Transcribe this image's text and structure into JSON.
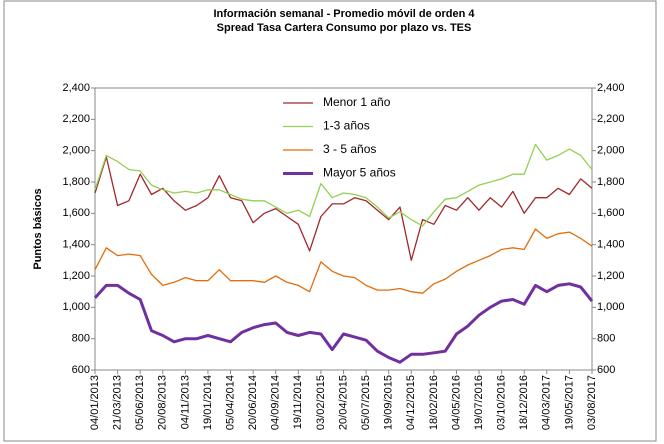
{
  "chart_data": {
    "type": "line",
    "title": "Información semanal - Promedio móvil de orden 4",
    "subtitle": "Spread Tasa Cartera Consumo  por plazo vs. TES",
    "y_label": "Puntos básicos",
    "categories": [
      "04/01/2013",
      null,
      "21/03/2013",
      null,
      "05/06/2013",
      null,
      "20/08/2013",
      null,
      "04/11/2013",
      null,
      "19/01/2014",
      null,
      "05/04/2014",
      null,
      "20/06/2014",
      null,
      "04/09/2014",
      null,
      "19/11/2014",
      null,
      "03/02/2015",
      null,
      "20/04/2015",
      null,
      "05/07/2015",
      null,
      "19/09/2015",
      null,
      "04/12/2015",
      null,
      "18/02/2016",
      null,
      "04/05/2016",
      null,
      "19/07/2016",
      null,
      "03/10/2016",
      null,
      "18/12/2016",
      null,
      "04/03/2017",
      null,
      "19/05/2017",
      null,
      "03/08/2017"
    ],
    "series": [
      {
        "name": "Menor 1 año",
        "color": "#a0282d",
        "values": [
          1730,
          1960,
          1650,
          1680,
          1850,
          1720,
          1760,
          1680,
          1620,
          1650,
          1700,
          1840,
          1700,
          1680,
          1540,
          1600,
          1630,
          1580,
          1530,
          1360,
          1580,
          1660,
          1660,
          1700,
          1680,
          1620,
          1560,
          1640,
          1300,
          1560,
          1530,
          1650,
          1620,
          1700,
          1620,
          1700,
          1640,
          1740,
          1600,
          1700,
          1700,
          1760,
          1720,
          1820,
          1760
        ]
      },
      {
        "name": "1-3 años",
        "color": "#92d050",
        "values": [
          1750,
          1970,
          1930,
          1880,
          1870,
          1780,
          1750,
          1730,
          1740,
          1730,
          1750,
          1750,
          1720,
          1690,
          1680,
          1680,
          1640,
          1600,
          1620,
          1580,
          1790,
          1700,
          1730,
          1720,
          1700,
          1640,
          1570,
          1610,
          1560,
          1520,
          1610,
          1690,
          1700,
          1740,
          1780,
          1800,
          1820,
          1850,
          1850,
          2040,
          1940,
          1970,
          2010,
          1970,
          1880
        ]
      },
      {
        "name": "3 - 5 años",
        "color": "#e46c0a",
        "values": [
          1240,
          1380,
          1330,
          1340,
          1330,
          1210,
          1140,
          1160,
          1190,
          1170,
          1170,
          1240,
          1170,
          1170,
          1170,
          1160,
          1200,
          1160,
          1140,
          1100,
          1290,
          1230,
          1200,
          1190,
          1140,
          1110,
          1110,
          1120,
          1100,
          1090,
          1150,
          1180,
          1230,
          1270,
          1300,
          1330,
          1370,
          1380,
          1370,
          1500,
          1440,
          1470,
          1480,
          1440,
          1390
        ]
      },
      {
        "name": "Mayor 5 años",
        "color": "#7030a0",
        "values": [
          1060,
          1140,
          1140,
          1090,
          1050,
          850,
          820,
          780,
          800,
          800,
          820,
          800,
          780,
          840,
          870,
          890,
          900,
          840,
          820,
          840,
          830,
          730,
          830,
          810,
          790,
          720,
          680,
          650,
          700,
          700,
          710,
          720,
          830,
          880,
          950,
          1000,
          1040,
          1050,
          1020,
          1140,
          1100,
          1140,
          1150,
          1130,
          1040
        ]
      }
    ],
    "ylim": [
      600,
      2400
    ],
    "yticks": [
      {
        "value": 600,
        "label": "600"
      },
      {
        "value": 800,
        "label": "800"
      },
      {
        "value": 1000,
        "label": "1,000"
      },
      {
        "value": 1200,
        "label": "1,200"
      },
      {
        "value": 1400,
        "label": "1,400"
      },
      {
        "value": 1600,
        "label": "1,600"
      },
      {
        "value": 1800,
        "label": "1,800"
      },
      {
        "value": 2000,
        "label": "2,000"
      },
      {
        "value": 2200,
        "label": "2,200"
      },
      {
        "value": 2400,
        "label": "2,400"
      }
    ],
    "y2lim": [
      600,
      2400
    ],
    "y2ticks": [
      {
        "value": 600,
        "label": "600"
      },
      {
        "value": 800,
        "label": "800"
      },
      {
        "value": 1000,
        "label": "1,000"
      },
      {
        "value": 1200,
        "label": "1,200"
      },
      {
        "value": 1400,
        "label": "1,400"
      },
      {
        "value": 1600,
        "label": "1,600"
      },
      {
        "value": 1800,
        "label": "1,800"
      },
      {
        "value": 2000,
        "label": "2,000"
      },
      {
        "value": 2200,
        "label": "2,200"
      },
      {
        "value": 2400,
        "label": "2,400"
      }
    ]
  }
}
